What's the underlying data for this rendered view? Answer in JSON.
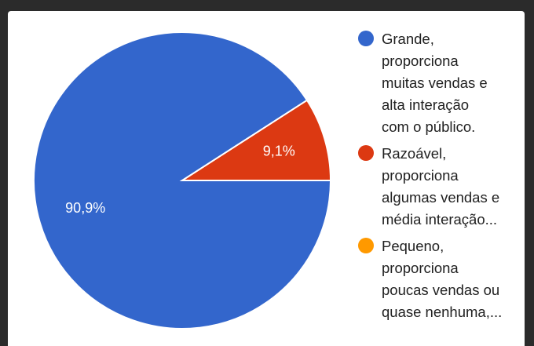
{
  "chart_data": {
    "type": "pie",
    "slices": [
      {
        "label": "Grande,\nproporciona\nmuitas vendas e\nalta interação\ncom o público.",
        "value": 90.9,
        "value_label": "90,9%",
        "color": "#3366cc"
      },
      {
        "label": "Razoável,\nproporciona\nalgumas vendas e\nmédia interação...",
        "value": 9.1,
        "value_label": "9,1%",
        "color": "#dc3912"
      },
      {
        "label": "Pequeno,\nproporciona\npoucas vendas ou\nquase nenhuma,...",
        "value": 0,
        "value_label": "",
        "color": "#ff9900"
      }
    ],
    "legend_position": "right"
  }
}
